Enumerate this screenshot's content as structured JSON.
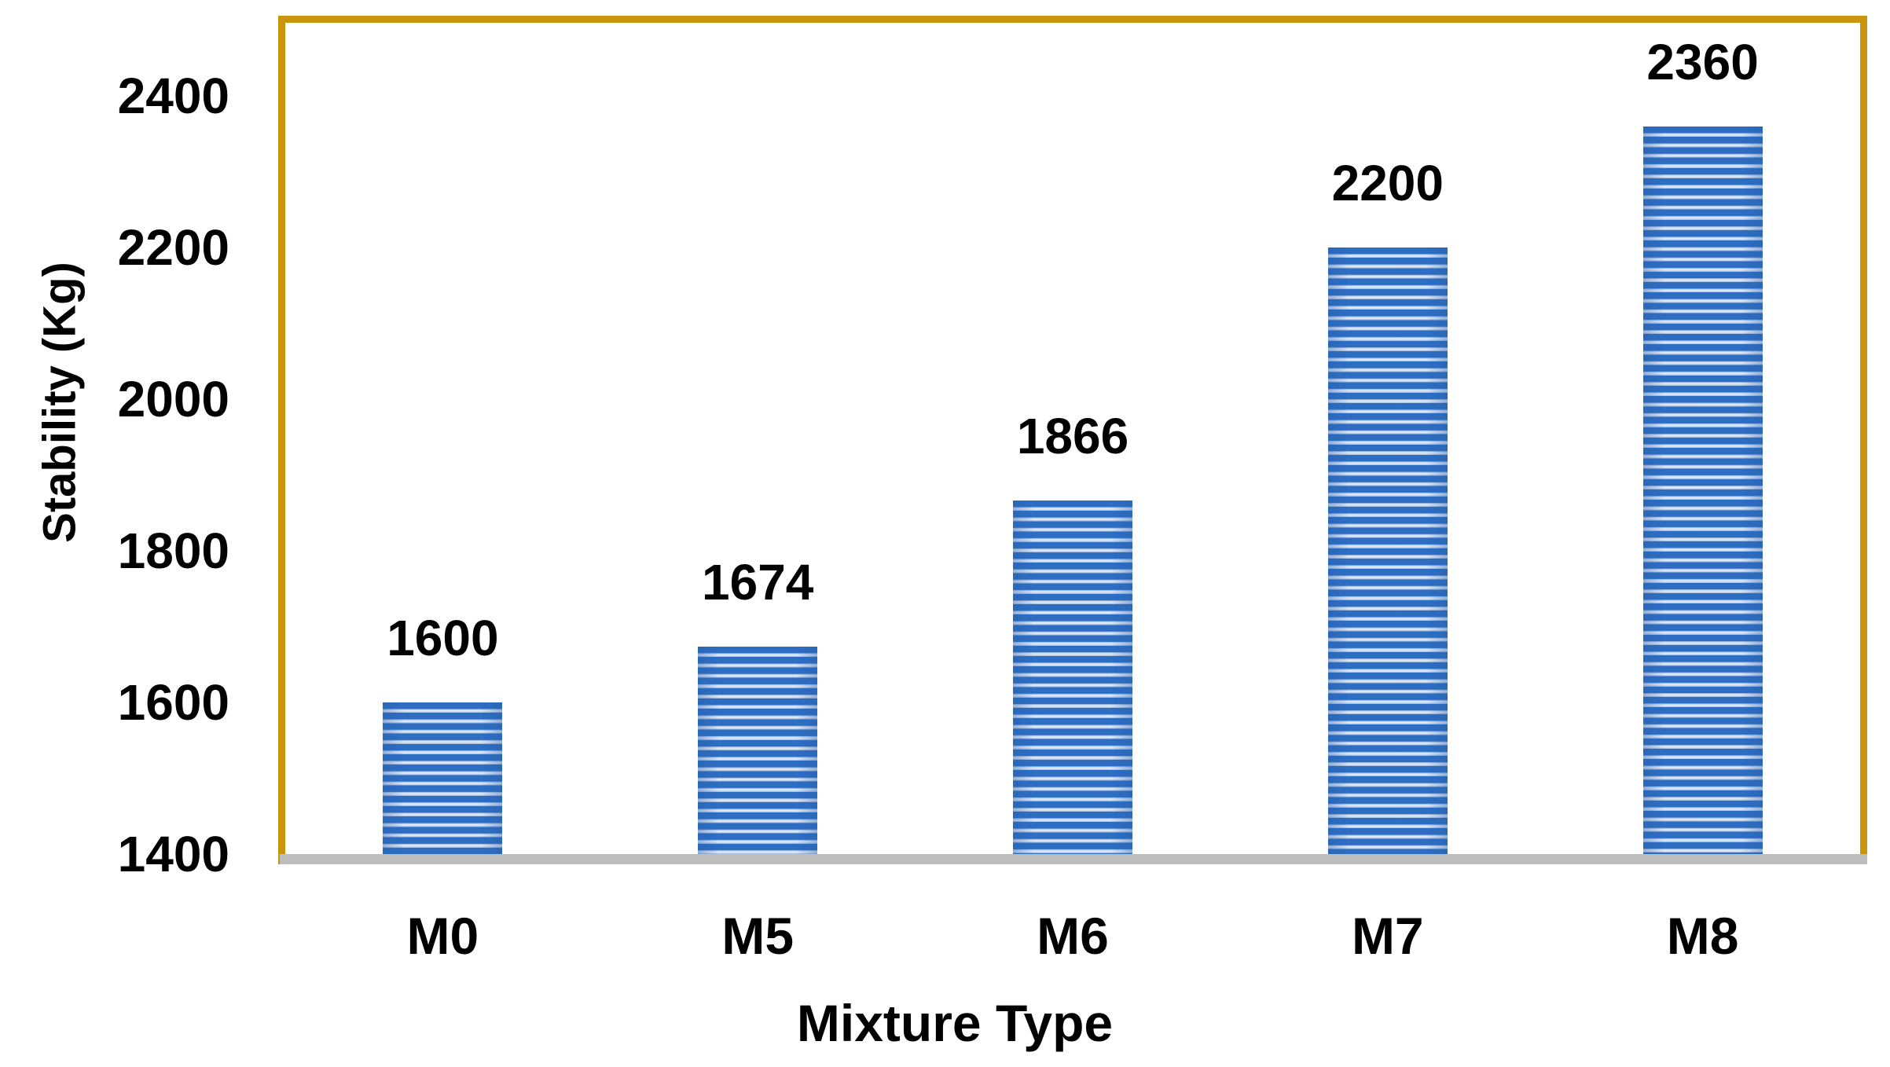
{
  "figure": {
    "background": "#ffffff",
    "accent_border_color": "#C9940E",
    "baseline_color": "#BDBDBD",
    "bar_stripe_dark": "#2D6EC3",
    "bar_stripe_mid": "#9FBBE3",
    "bar_stripe_light": "#ECF2FB",
    "text_color": "#000000"
  },
  "chart_data": {
    "type": "bar",
    "title": "",
    "categories": [
      "M0",
      "M5",
      "M6",
      "M7",
      "M8"
    ],
    "values": [
      1600,
      1674,
      1866,
      2200,
      2360
    ],
    "data_labels": [
      "1600",
      "1674",
      "1866",
      "2200",
      "2360"
    ],
    "xlabel": "Mixture Type",
    "ylabel": "Stability (Kg)",
    "yticks": [
      1400,
      1600,
      1800,
      2000,
      2200,
      2400
    ],
    "ytick_labels": [
      "1400",
      "1600",
      "1800",
      "2000",
      "2200",
      "2400"
    ],
    "ylim": [
      1400,
      2500
    ],
    "grid": false,
    "legend_position": "none",
    "bar_pattern": "horizontal-stripes"
  }
}
